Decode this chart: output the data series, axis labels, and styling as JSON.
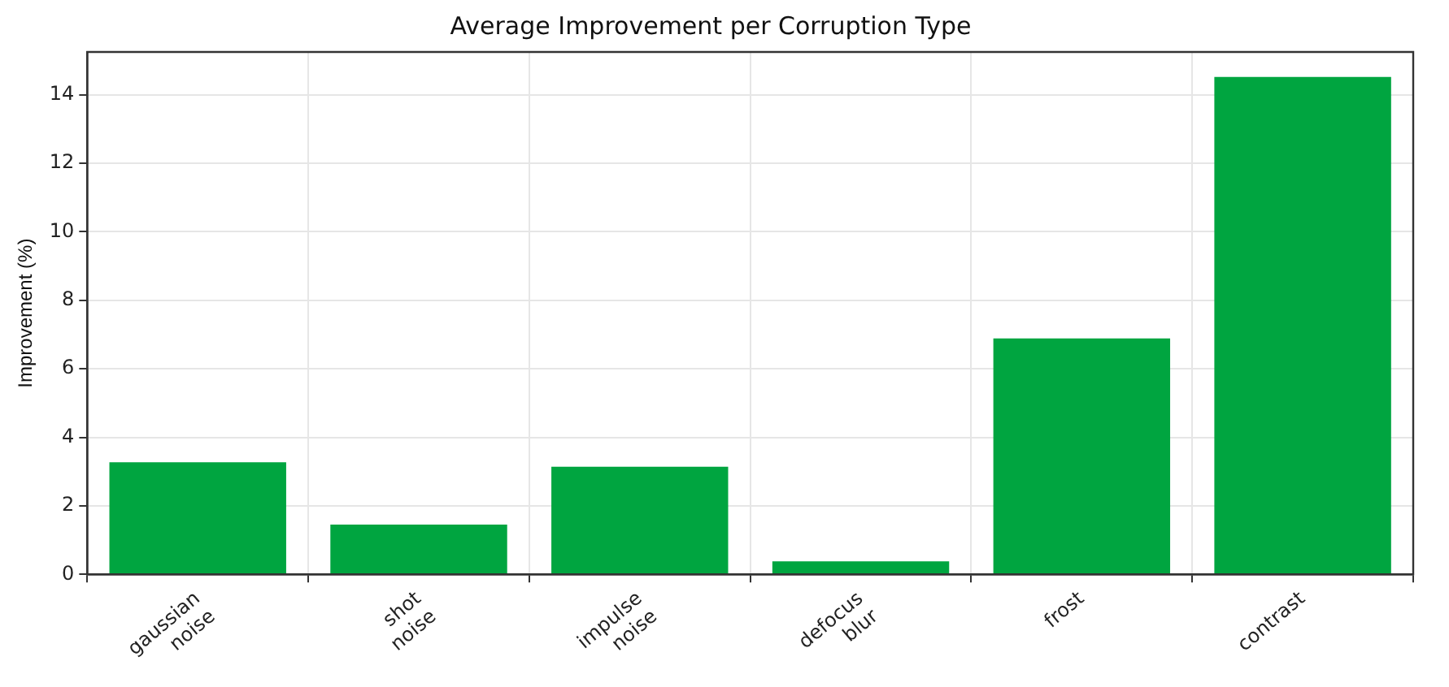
{
  "chart_data": {
    "type": "bar",
    "title": "Average Improvement per Corruption Type",
    "ylabel": "Improvement (%)",
    "categories": [
      "gaussian\nnoise",
      "shot\nnoise",
      "impulse\nnoise",
      "defocus\nblur",
      "frost",
      "contrast"
    ],
    "values": [
      3.27,
      1.45,
      3.14,
      0.38,
      6.89,
      14.52
    ],
    "color": "#00a540",
    "ylim": [
      0,
      15.25
    ],
    "yticks": [
      0,
      2,
      4,
      6,
      8,
      10,
      12,
      14
    ],
    "grid": true,
    "legend": false
  }
}
